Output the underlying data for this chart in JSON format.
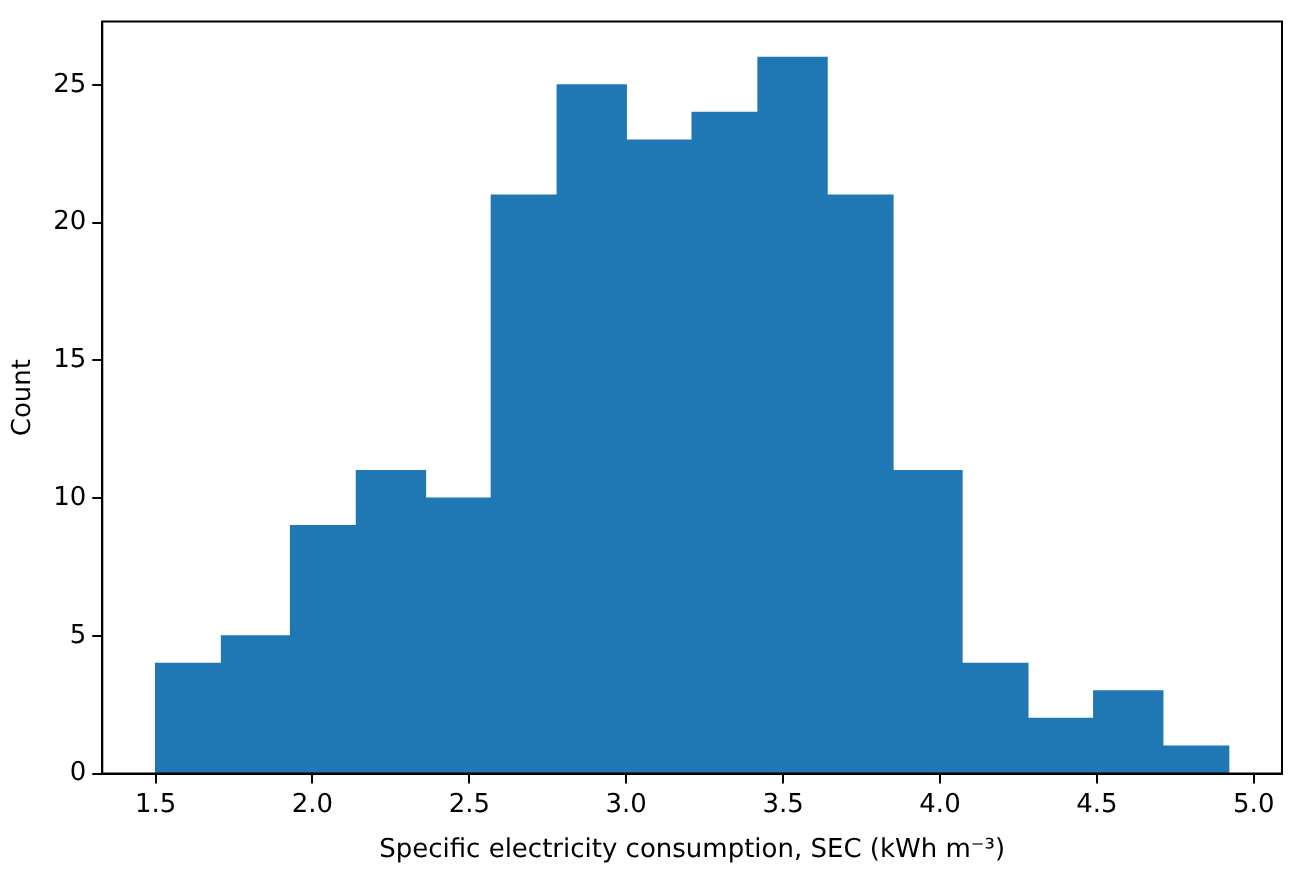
{
  "chart_data": {
    "type": "histogram",
    "xlabel": "Specific electricity consumption, SEC (kWh m⁻³)",
    "ylabel": "Count",
    "bins": [
      1.5,
      1.71,
      1.93,
      2.14,
      2.36,
      2.57,
      2.78,
      3.0,
      3.21,
      3.42,
      3.64,
      3.85,
      4.07,
      4.28,
      4.49,
      4.71,
      4.92
    ],
    "values": [
      4,
      5,
      9,
      11,
      10,
      21,
      25,
      23,
      24,
      26,
      21,
      11,
      4,
      2,
      3,
      1
    ],
    "color": "#1f77b4",
    "xlim": [
      1.33,
      5.09
    ],
    "xticks": [
      1.5,
      {
        "value": 2,
        "label": "2.0"
      },
      2.5,
      {
        "value": 3,
        "label": "3.0"
      },
      3.5,
      {
        "value": 4,
        "label": "4.0"
      },
      4.5,
      {
        "value": 5,
        "label": "5.0"
      }
    ],
    "ylim": [
      0,
      27.3
    ],
    "yticks": [
      0,
      5,
      10,
      15,
      20,
      25
    ],
    "grid": false,
    "legend": false
  }
}
